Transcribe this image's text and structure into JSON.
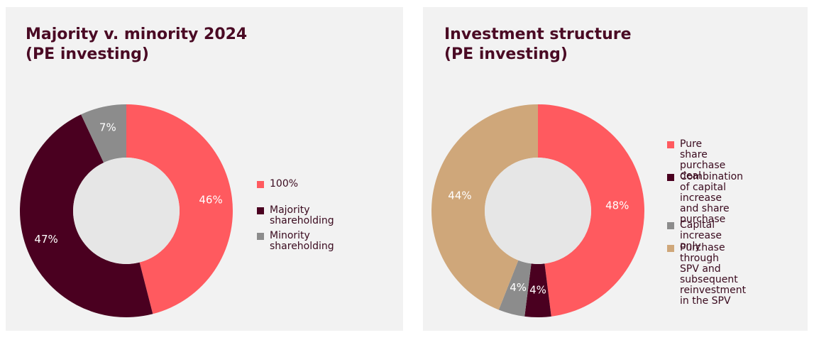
{
  "chart_data": [
    {
      "type": "donut",
      "title": "Majority v. minority 2024\n(PE investing)",
      "categories": [
        "100%",
        "Majority shareholding",
        "Minority shareholding"
      ],
      "values": [
        46,
        47,
        7
      ],
      "value_labels": [
        "46%",
        "47%",
        "7%"
      ],
      "colors": [
        "#ff5a5f",
        "#4a0020",
        "#8c8c8c"
      ],
      "legend": "right"
    },
    {
      "type": "donut",
      "title": "Investment structure\n(PE investing)",
      "categories": [
        "Pure share\npurchase deal",
        "Combination\nof capital increase\nand share purchase",
        "Capital increase only",
        "Purchase through\nSPV and subsequent\nreinvestment in the SPV"
      ],
      "values": [
        48,
        4,
        4,
        44
      ],
      "value_labels": [
        "48%",
        "4%",
        "4%",
        "44%"
      ],
      "colors": [
        "#ff5a5f",
        "#4a0020",
        "#8c8c8c",
        "#cfa77a"
      ],
      "legend": "right"
    }
  ]
}
